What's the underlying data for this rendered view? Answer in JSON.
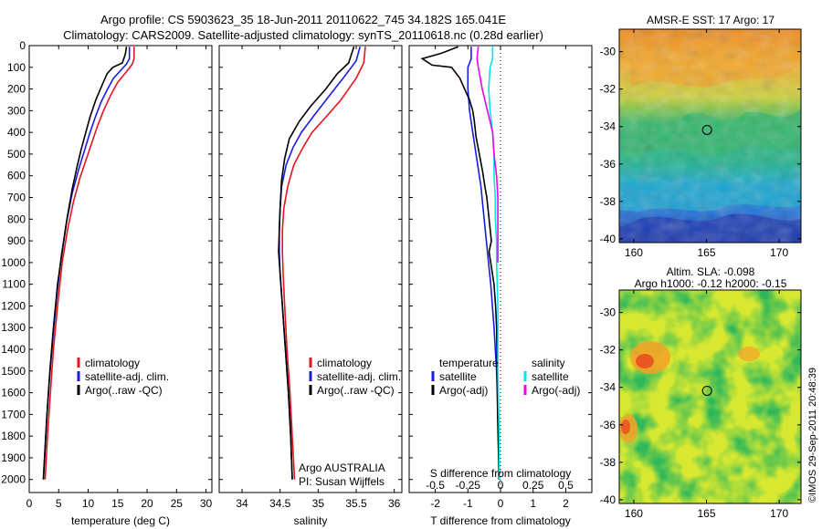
{
  "header": {
    "line1": "Argo profile: CS 5903623_35 18-Jun-2011 20110622_745 34.182S 165.041E",
    "line2": "Climatology: CARS2009. Satellite-adjusted climatology: synTS_20110618.nc (0.28d earlier)"
  },
  "float_info": {
    "line1": "Argo AUSTRALIA",
    "line2": "PI: Susan Wijffels"
  },
  "credit": "©IMOS 29-Sep-2011 20:48:39",
  "colors": {
    "climatology": "#e8141c",
    "satellite": "#1a1ae6",
    "argo": "#000000",
    "satellite_s": "#00e5ee",
    "argo_s": "#ee00ee",
    "frame": "#000000"
  },
  "chart_data": [
    {
      "id": "temperature",
      "type": "line",
      "xlabel": "temperature (deg C)",
      "ylabel": "",
      "xlim": [
        0,
        31
      ],
      "ylim": [
        2060,
        0
      ],
      "xticks": [
        0,
        5,
        10,
        15,
        20,
        25,
        30
      ],
      "yticks": [
        0,
        100,
        200,
        300,
        400,
        500,
        600,
        700,
        800,
        900,
        1000,
        1100,
        1200,
        1300,
        1400,
        1500,
        1600,
        1700,
        1800,
        1900,
        2000
      ],
      "legend": [
        "climatology",
        "satellite-adj. clim.",
        "Argo(..raw -QC)"
      ],
      "series": [
        {
          "name": "climatology",
          "color": "#e8141c",
          "points": [
            [
              17.8,
              5
            ],
            [
              17.8,
              60
            ],
            [
              17.5,
              85
            ],
            [
              16.5,
              120
            ],
            [
              15,
              170
            ],
            [
              13.8,
              230
            ],
            [
              12.6,
              300
            ],
            [
              11.6,
              370
            ],
            [
              10.6,
              450
            ],
            [
              9.6,
              530
            ],
            [
              8.6,
              610
            ],
            [
              7.5,
              720
            ],
            [
              6.5,
              850
            ],
            [
              5.6,
              1000
            ],
            [
              4.8,
              1200
            ],
            [
              4.1,
              1400
            ],
            [
              3.6,
              1600
            ],
            [
              3.1,
              1800
            ],
            [
              2.7,
              2000
            ]
          ]
        },
        {
          "name": "satellite-adj. clim.",
          "color": "#1a1ae6",
          "points": [
            [
              17,
              5
            ],
            [
              17,
              60
            ],
            [
              16.5,
              85
            ],
            [
              15.5,
              115
            ],
            [
              14.3,
              150
            ],
            [
              13.3,
              200
            ],
            [
              12.2,
              260
            ],
            [
              11.2,
              330
            ],
            [
              10.2,
              410
            ],
            [
              9.3,
              490
            ],
            [
              8.4,
              570
            ],
            [
              7.3,
              680
            ],
            [
              6.3,
              820
            ],
            [
              5.4,
              980
            ],
            [
              4.7,
              1150
            ],
            [
              4,
              1350
            ],
            [
              3.4,
              1550
            ],
            [
              2.9,
              1750
            ],
            [
              2.5,
              1950
            ],
            [
              2.4,
              2000
            ]
          ]
        },
        {
          "name": "Argo(..raw -QC)",
          "color": "#000000",
          "points": [
            [
              16.5,
              5
            ],
            [
              16.3,
              40
            ],
            [
              15.8,
              80
            ],
            [
              14.2,
              100
            ],
            [
              13.2,
              130
            ],
            [
              12.4,
              180
            ],
            [
              11.3,
              250
            ],
            [
              10.3,
              330
            ],
            [
              9.5,
              410
            ],
            [
              8.8,
              480
            ],
            [
              8.1,
              560
            ],
            [
              7.3,
              660
            ],
            [
              6.4,
              800
            ],
            [
              5.6,
              950
            ],
            [
              4.8,
              1100
            ],
            [
              4.1,
              1300
            ],
            [
              3.5,
              1500
            ],
            [
              3,
              1700
            ],
            [
              2.6,
              1900
            ],
            [
              2.4,
              2000
            ]
          ]
        }
      ]
    },
    {
      "id": "salinity",
      "type": "line",
      "xlabel": "salinity",
      "ylabel": "",
      "xlim": [
        33.7,
        36.1
      ],
      "ylim": [
        2060,
        0
      ],
      "xticks": [
        34,
        34.5,
        35,
        35.5,
        36
      ],
      "legend": [
        "climatology",
        "satellite-adj. clim.",
        "Argo(..raw -QC)"
      ],
      "series": [
        {
          "name": "climatology",
          "color": "#e8141c",
          "points": [
            [
              35.62,
              5
            ],
            [
              35.6,
              80
            ],
            [
              35.5,
              150
            ],
            [
              35.3,
              250
            ],
            [
              35.1,
              330
            ],
            [
              34.92,
              400
            ],
            [
              34.8,
              470
            ],
            [
              34.68,
              550
            ],
            [
              34.6,
              650
            ],
            [
              34.55,
              750
            ],
            [
              34.53,
              850
            ],
            [
              34.53,
              950
            ],
            [
              34.54,
              1050
            ],
            [
              34.56,
              1200
            ],
            [
              34.59,
              1400
            ],
            [
              34.63,
              1600
            ],
            [
              34.66,
              1800
            ],
            [
              34.69,
              2000
            ]
          ]
        },
        {
          "name": "satellite-adj. clim.",
          "color": "#1a1ae6",
          "points": [
            [
              35.55,
              5
            ],
            [
              35.5,
              70
            ],
            [
              35.35,
              140
            ],
            [
              35.15,
              230
            ],
            [
              34.95,
              320
            ],
            [
              34.78,
              400
            ],
            [
              34.67,
              470
            ],
            [
              34.58,
              550
            ],
            [
              34.52,
              650
            ],
            [
              34.5,
              750
            ],
            [
              34.49,
              850
            ],
            [
              34.49,
              950
            ],
            [
              34.5,
              1050
            ],
            [
              34.53,
              1200
            ],
            [
              34.57,
              1400
            ],
            [
              34.61,
              1600
            ],
            [
              34.64,
              1800
            ],
            [
              34.66,
              2000
            ]
          ]
        },
        {
          "name": "Argo(..raw -QC)",
          "color": "#000000",
          "points": [
            [
              35.47,
              5
            ],
            [
              35.4,
              80
            ],
            [
              35.25,
              130
            ],
            [
              35.1,
              200
            ],
            [
              34.9,
              280
            ],
            [
              34.75,
              350
            ],
            [
              34.62,
              430
            ],
            [
              34.56,
              520
            ],
            [
              34.52,
              620
            ],
            [
              34.5,
              750
            ],
            [
              34.49,
              850
            ],
            [
              34.48,
              950
            ],
            [
              34.5,
              1050
            ],
            [
              34.53,
              1200
            ],
            [
              34.57,
              1400
            ],
            [
              34.61,
              1600
            ],
            [
              34.64,
              1800
            ],
            [
              34.66,
              2000
            ]
          ]
        }
      ]
    },
    {
      "id": "difference",
      "type": "line",
      "xlabel": "T difference from climatology",
      "xlabel_top": "S difference from climatology",
      "ylabel": "",
      "xlim": [
        -2.8,
        2.8
      ],
      "ylim": [
        2060,
        0
      ],
      "xticks": [
        -2,
        -1,
        0,
        1,
        2
      ],
      "s_ticks": [
        -0.5,
        -0.25,
        0,
        0.25,
        0.5
      ],
      "s_tick_labels": [
        "-0.5",
        "-0.25",
        "0",
        "0.25",
        "0.5"
      ],
      "legend_t": {
        "title": "temperature",
        "items": [
          "satellite",
          "Argo(-adj)"
        ]
      },
      "legend_s": {
        "title": "salinity",
        "items": [
          "satellite",
          "Argo(-adj)"
        ]
      },
      "series": [
        {
          "name": "temperature satellite",
          "color": "#1a1ae6",
          "points": [
            [
              -0.9,
              5
            ],
            [
              -0.9,
              60
            ],
            [
              -1,
              100
            ],
            [
              -1,
              200
            ],
            [
              -0.95,
              300
            ],
            [
              -0.85,
              400
            ],
            [
              -0.75,
              500
            ],
            [
              -0.6,
              650
            ],
            [
              -0.5,
              800
            ],
            [
              -0.4,
              950
            ],
            [
              -0.3,
              1100
            ],
            [
              -0.2,
              1300
            ],
            [
              -0.12,
              1500
            ],
            [
              -0.08,
              1700
            ],
            [
              -0.05,
              1900
            ],
            [
              -0.03,
              2000
            ]
          ]
        },
        {
          "name": "temperature Argo(-adj)",
          "color": "#000000",
          "points": [
            [
              -1.3,
              5
            ],
            [
              -1.8,
              35
            ],
            [
              -2.4,
              60
            ],
            [
              -2.1,
              90
            ],
            [
              -1.5,
              100
            ],
            [
              -1.25,
              150
            ],
            [
              -1.1,
              200
            ],
            [
              -0.95,
              250
            ],
            [
              -0.85,
              300
            ],
            [
              -0.8,
              350
            ],
            [
              -0.75,
              420
            ],
            [
              -0.65,
              500
            ],
            [
              -0.55,
              580
            ],
            [
              -0.48,
              650
            ],
            [
              -0.42,
              700
            ],
            [
              -0.35,
              800
            ],
            [
              -0.28,
              900
            ],
            [
              -0.35,
              950
            ],
            [
              -0.3,
              1000
            ],
            [
              -0.2,
              1100
            ],
            [
              -0.15,
              1200
            ],
            [
              -0.12,
              1300
            ],
            [
              -0.1,
              1500
            ],
            [
              -0.09,
              1700
            ],
            [
              -0.06,
              1900
            ],
            [
              -0.05,
              2000
            ]
          ]
        },
        {
          "name": "salinity satellite",
          "color": "#00e5ee",
          "points": [
            [
              -0.06,
              5
            ],
            [
              -0.06,
              60
            ],
            [
              -0.08,
              100
            ],
            [
              -0.09,
              200
            ],
            [
              -0.08,
              300
            ],
            [
              -0.06,
              400
            ],
            [
              -0.05,
              500
            ],
            [
              -0.05,
              600
            ],
            [
              -0.04,
              700
            ],
            [
              -0.04,
              800
            ],
            [
              -0.03,
              900
            ],
            [
              -0.03,
              1000
            ],
            [
              -0.02,
              1200
            ],
            [
              -0.02,
              1500
            ],
            [
              -0.01,
              1800
            ],
            [
              -0.01,
              2000
            ]
          ]
        },
        {
          "name": "salinity Argo(-adj)",
          "color": "#ee00ee",
          "points": [
            [
              -0.17,
              5
            ],
            [
              -0.18,
              60
            ],
            [
              -0.17,
              100
            ],
            [
              -0.14,
              200
            ],
            [
              -0.1,
              300
            ],
            [
              -0.06,
              400
            ],
            [
              -0.05,
              500
            ],
            [
              -0.03,
              600
            ],
            [
              -0.02,
              700
            ],
            [
              -0.02,
              800
            ],
            [
              -0.02,
              900
            ],
            [
              -0.02,
              1000
            ]
          ]
        }
      ]
    },
    {
      "id": "sst_map",
      "type": "heatmap",
      "title": "AMSR-E SST: 17 Argo: 17",
      "xlim": [
        159,
        171.5
      ],
      "ylim": [
        -40.2,
        -28.8
      ],
      "xticks": [
        160,
        165,
        170
      ],
      "yticks": [
        -30,
        -32,
        -34,
        -36,
        -38,
        -40
      ],
      "marker": [
        165.041,
        -34.182
      ]
    },
    {
      "id": "sla_map",
      "type": "heatmap",
      "title_line1": "Altim. SLA: -0.098",
      "title_line2": "Argo h1000: -0.12 h2000: -0.15",
      "xlim": [
        159,
        171.5
      ],
      "ylim": [
        -40.2,
        -28.8
      ],
      "xticks": [
        160,
        165,
        170
      ],
      "yticks": [
        -30,
        -32,
        -34,
        -36,
        -38,
        -40
      ],
      "marker": [
        165.041,
        -34.182
      ]
    }
  ]
}
